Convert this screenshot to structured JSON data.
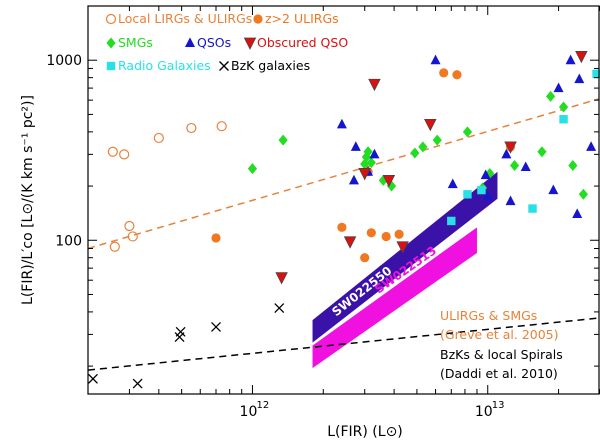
{
  "chart_data": {
    "type": "scatter",
    "xscale": "log",
    "yscale": "log",
    "xlim": [
      200000000000.0,
      30000000000000.0
    ],
    "ylim": [
      14,
      2000
    ],
    "xlabel": "L(FIR)  (L⊙)",
    "ylabel": "L(FIR)/L′co [L⊙/(K km s⁻¹ pc²)]",
    "x_tick_labels": [
      {
        "value": 1000000000000.0,
        "label": "10",
        "exp": "12"
      },
      {
        "value": 10000000000000.0,
        "label": "10",
        "exp": "13"
      }
    ],
    "y_tick_labels": [
      {
        "value": 100,
        "label": "100"
      },
      {
        "value": 1000,
        "label": "1000"
      }
    ],
    "colors": {
      "local": "#E8823A",
      "z2": "#F07820",
      "smg": "#22DD22",
      "qso": "#1515CC",
      "obscured": "#DD1010",
      "radio": "#2AE0E8",
      "bzk": "#000000",
      "sw022550": "#3B12A8",
      "sw022513": "#F010E0"
    },
    "legend": [
      {
        "key": "local",
        "marker": "open-circle",
        "label": "Local LIRGs & ULIRGs"
      },
      {
        "key": "z2",
        "marker": "filled-circle",
        "label": "z>2 ULIRGs"
      },
      {
        "key": "smg",
        "marker": "diamond",
        "label": "SMGs"
      },
      {
        "key": "qso",
        "marker": "triangle-up",
        "label": "QSOs"
      },
      {
        "key": "obscured",
        "marker": "triangle-down",
        "label": "Obscured QSO"
      },
      {
        "key": "radio",
        "marker": "square",
        "label": "Radio Galaxies"
      },
      {
        "key": "bzk",
        "marker": "cross",
        "label": "BzK galaxies"
      }
    ],
    "series": [
      {
        "key": "local",
        "name": "Local LIRGs & ULIRGs",
        "points": [
          [
            255000000000.0,
            310
          ],
          [
            285000000000.0,
            300
          ],
          [
            300000000000.0,
            120
          ],
          [
            310000000000.0,
            105
          ],
          [
            260000000000.0,
            92
          ],
          [
            400000000000.0,
            370
          ],
          [
            550000000000.0,
            420
          ],
          [
            740000000000.0,
            430
          ]
        ]
      },
      {
        "key": "z2",
        "name": "z>2 ULIRGs",
        "points": [
          [
            700000000000.0,
            103
          ],
          [
            2400000000000.0,
            118
          ],
          [
            3100000000000.0,
            240
          ],
          [
            3200000000000.0,
            110
          ],
          [
            3000000000000.0,
            80
          ],
          [
            3700000000000.0,
            105
          ],
          [
            4200000000000.0,
            108
          ],
          [
            6500000000000.0,
            850
          ],
          [
            7400000000000.0,
            830
          ],
          [
            12500000000000.0,
            330
          ]
        ]
      },
      {
        "key": "smg",
        "name": "SMGs",
        "points": [
          [
            1000000000000.0,
            250
          ],
          [
            1350000000000.0,
            360
          ],
          [
            3000000000000.0,
            240
          ],
          [
            3000000000000.0,
            265
          ],
          [
            3050000000000.0,
            290
          ],
          [
            3100000000000.0,
            310
          ],
          [
            3200000000000.0,
            270
          ],
          [
            3600000000000.0,
            215
          ],
          [
            3900000000000.0,
            200
          ],
          [
            4900000000000.0,
            305
          ],
          [
            5300000000000.0,
            330
          ],
          [
            6100000000000.0,
            360
          ],
          [
            8200000000000.0,
            400
          ],
          [
            9500000000000.0,
            195
          ],
          [
            10200000000000.0,
            235
          ],
          [
            13000000000000.0,
            260
          ],
          [
            17000000000000.0,
            310
          ],
          [
            18500000000000.0,
            630
          ],
          [
            21000000000000.0,
            550
          ],
          [
            23000000000000.0,
            260
          ],
          [
            25500000000000.0,
            180
          ]
        ]
      },
      {
        "key": "qso",
        "name": "QSOs",
        "points": [
          [
            2400000000000.0,
            440
          ],
          [
            2700000000000.0,
            215
          ],
          [
            2750000000000.0,
            330
          ],
          [
            3100000000000.0,
            240
          ],
          [
            3300000000000.0,
            300
          ],
          [
            6000000000000.0,
            1000
          ],
          [
            7100000000000.0,
            205
          ],
          [
            9800000000000.0,
            230
          ],
          [
            10000000000000.0,
            175
          ],
          [
            12000000000000.0,
            300
          ],
          [
            12500000000000.0,
            165
          ],
          [
            14500000000000.0,
            255
          ],
          [
            19000000000000.0,
            190
          ],
          [
            20000000000000.0,
            700
          ],
          [
            22500000000000.0,
            1000
          ],
          [
            24000000000000.0,
            140
          ],
          [
            24500000000000.0,
            785
          ],
          [
            27500000000000.0,
            330
          ]
        ]
      },
      {
        "key": "obscured",
        "name": "Obscured QSO",
        "points": [
          [
            1330000000000.0,
            62
          ],
          [
            2600000000000.0,
            98
          ],
          [
            3000000000000.0,
            235
          ],
          [
            3300000000000.0,
            735
          ],
          [
            3800000000000.0,
            215
          ],
          [
            4350000000000.0,
            92
          ],
          [
            5700000000000.0,
            440
          ],
          [
            12500000000000.0,
            330
          ],
          [
            25000000000000.0,
            1050
          ]
        ]
      },
      {
        "key": "radio",
        "name": "Radio Galaxies",
        "points": [
          [
            7000000000000.0,
            128
          ],
          [
            8200000000000.0,
            180
          ],
          [
            9400000000000.0,
            190
          ],
          [
            15500000000000.0,
            150
          ],
          [
            21000000000000.0,
            470
          ],
          [
            29000000000000.0,
            840
          ]
        ]
      },
      {
        "key": "bzk",
        "name": "BzK galaxies",
        "points": [
          [
            210000000000.0,
            17
          ],
          [
            325000000000.0,
            16
          ],
          [
            490000000000.0,
            29
          ],
          [
            495000000000.0,
            31
          ],
          [
            700000000000.0,
            33
          ],
          [
            1300000000000.0,
            42
          ]
        ]
      }
    ],
    "lines": [
      {
        "name": "ULIRGs & SMGs (Greve et al. 2005)",
        "color": "#E8823A",
        "dash": "dashed",
        "from": [
          200000000000.0,
          90
        ],
        "to": [
          30000000000000.0,
          610
        ]
      },
      {
        "name": "BzKs & local Spirals (Daddi et al. 2010)",
        "color": "#000000",
        "dash": "dashed",
        "from": [
          200000000000.0,
          19
        ],
        "to": [
          30000000000000.0,
          37
        ]
      }
    ],
    "bands": [
      {
        "name": "SW022550",
        "color": "#3B12A8",
        "x": [
          1800000000000.0,
          11000000000000.0
        ],
        "lower": [
          27,
          170
        ],
        "upper": [
          36,
          240
        ]
      },
      {
        "name": "SW022513",
        "color": "#F010E0",
        "x": [
          1800000000000.0,
          9000000000000.0
        ],
        "lower": [
          19.5,
          85
        ],
        "upper": [
          26,
          118
        ]
      }
    ],
    "annotations": [
      {
        "text": "SW022550",
        "color": "#FFFFFF"
      },
      {
        "text": "SW022513",
        "color": "#F010E0"
      },
      {
        "line1": "ULIRGs & SMGs",
        "line2": "(Greve et al. 2005)",
        "color": "#E8823A"
      },
      {
        "line1": "BzKs & local Spirals",
        "line2": "(Daddi et al. 2010)",
        "color": "#000000"
      }
    ]
  }
}
